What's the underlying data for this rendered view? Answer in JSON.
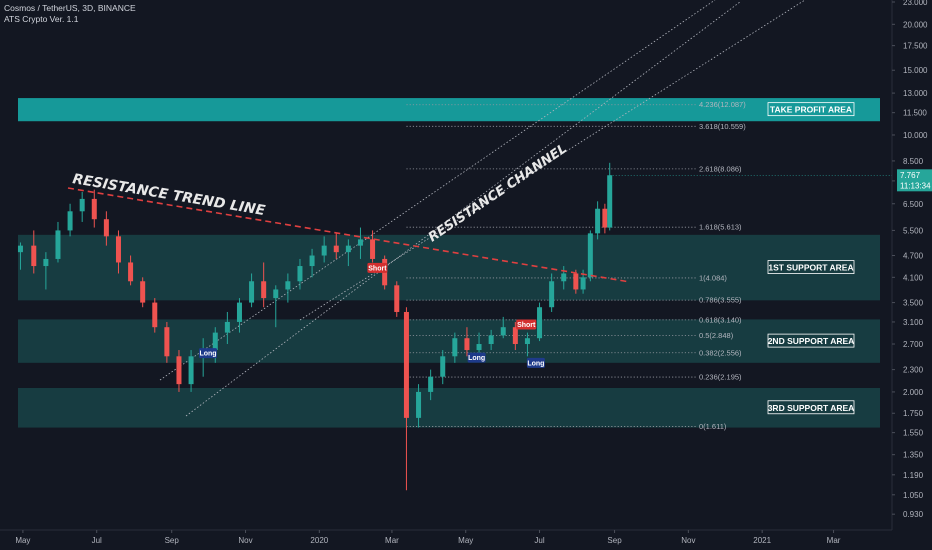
{
  "header": {
    "symbol": "Cosmos / TetherUS, 3D, BINANCE",
    "indicator": "ATS Crypto Ver. 1.1"
  },
  "colors": {
    "background": "#131722",
    "up": "#26a69a",
    "down": "#ef5350",
    "zone_dark": "#1a4a4c",
    "zone_bright": "#16a0a0",
    "trend": "#e04040",
    "price_tag": "#26a69a"
  },
  "price_tag": {
    "value": "7.767",
    "countdown": "11:13:34"
  },
  "chart_data": {
    "type": "candlestick",
    "title": "Cosmos / TetherUS, 3D, BINANCE",
    "scale": "log",
    "ylim": [
      0.88,
      23.0
    ],
    "y_ticks": [
      "23.000",
      "20.000",
      "17.500",
      "15.000",
      "13.000",
      "11.500",
      "10.000",
      "8.500",
      "7.500",
      "6.500",
      "5.500",
      "4.700",
      "4.100",
      "3.500",
      "3.100",
      "2.700",
      "2.300",
      "2.000",
      "1.750",
      "1.550",
      "1.350",
      "1.190",
      "1.050",
      "0.930"
    ],
    "x_ticks": [
      "May",
      "Jul",
      "Sep",
      "Nov",
      "2020",
      "Mar",
      "May",
      "Jul",
      "Sep",
      "Nov",
      "2021",
      "Mar"
    ],
    "x_range": [
      "2019-04-22",
      "2021-04-15"
    ],
    "series": [
      {
        "date": "2019-04-29",
        "open": 4.8,
        "high": 5.1,
        "low": 4.3,
        "close": 5.0
      },
      {
        "date": "2019-05-10",
        "open": 5.0,
        "high": 5.5,
        "low": 4.2,
        "close": 4.4
      },
      {
        "date": "2019-05-20",
        "open": 4.4,
        "high": 4.8,
        "low": 3.8,
        "close": 4.6
      },
      {
        "date": "2019-05-30",
        "open": 4.6,
        "high": 5.8,
        "low": 4.5,
        "close": 5.5
      },
      {
        "date": "2019-06-09",
        "open": 5.5,
        "high": 6.5,
        "low": 5.3,
        "close": 6.2
      },
      {
        "date": "2019-06-19",
        "open": 6.2,
        "high": 7.0,
        "low": 5.8,
        "close": 6.7
      },
      {
        "date": "2019-06-29",
        "open": 6.7,
        "high": 7.1,
        "low": 5.6,
        "close": 5.9
      },
      {
        "date": "2019-07-09",
        "open": 5.9,
        "high": 6.2,
        "low": 5.0,
        "close": 5.3
      },
      {
        "date": "2019-07-19",
        "open": 5.3,
        "high": 5.5,
        "low": 4.2,
        "close": 4.5
      },
      {
        "date": "2019-07-29",
        "open": 4.5,
        "high": 4.7,
        "low": 3.9,
        "close": 4.0
      },
      {
        "date": "2019-08-08",
        "open": 4.0,
        "high": 4.1,
        "low": 3.4,
        "close": 3.5
      },
      {
        "date": "2019-08-18",
        "open": 3.5,
        "high": 3.6,
        "low": 2.9,
        "close": 3.0
      },
      {
        "date": "2019-08-28",
        "open": 3.0,
        "high": 3.1,
        "low": 2.4,
        "close": 2.5
      },
      {
        "date": "2019-09-07",
        "open": 2.5,
        "high": 2.6,
        "low": 2.0,
        "close": 2.1
      },
      {
        "date": "2019-09-17",
        "open": 2.1,
        "high": 2.6,
        "low": 2.0,
        "close": 2.5
      },
      {
        "date": "2019-09-27",
        "open": 2.5,
        "high": 2.8,
        "low": 2.2,
        "close": 2.6
      },
      {
        "date": "2019-10-07",
        "open": 2.6,
        "high": 3.0,
        "low": 2.4,
        "close": 2.9
      },
      {
        "date": "2019-10-17",
        "open": 2.9,
        "high": 3.3,
        "low": 2.7,
        "close": 3.1
      },
      {
        "date": "2019-10-27",
        "open": 3.1,
        "high": 3.6,
        "low": 2.9,
        "close": 3.5
      },
      {
        "date": "2019-11-06",
        "open": 3.5,
        "high": 4.2,
        "low": 3.4,
        "close": 4.0
      },
      {
        "date": "2019-11-16",
        "open": 4.0,
        "high": 4.5,
        "low": 3.4,
        "close": 3.6
      },
      {
        "date": "2019-11-26",
        "open": 3.6,
        "high": 3.9,
        "low": 3.0,
        "close": 3.8
      },
      {
        "date": "2019-12-06",
        "open": 3.8,
        "high": 4.2,
        "low": 3.5,
        "close": 4.0
      },
      {
        "date": "2019-12-16",
        "open": 4.0,
        "high": 4.6,
        "low": 3.8,
        "close": 4.4
      },
      {
        "date": "2019-12-26",
        "open": 4.4,
        "high": 4.9,
        "low": 4.1,
        "close": 4.7
      },
      {
        "date": "2020-01-05",
        "open": 4.7,
        "high": 5.3,
        "low": 4.5,
        "close": 5.0
      },
      {
        "date": "2020-01-15",
        "open": 5.0,
        "high": 5.4,
        "low": 4.6,
        "close": 4.8
      },
      {
        "date": "2020-01-25",
        "open": 4.8,
        "high": 5.2,
        "low": 4.4,
        "close": 5.0
      },
      {
        "date": "2020-02-04",
        "open": 5.0,
        "high": 5.6,
        "low": 4.6,
        "close": 5.2
      },
      {
        "date": "2020-02-14",
        "open": 5.2,
        "high": 5.5,
        "low": 4.5,
        "close": 4.6
      },
      {
        "date": "2020-02-24",
        "open": 4.6,
        "high": 4.7,
        "low": 3.8,
        "close": 3.9
      },
      {
        "date": "2020-03-05",
        "open": 3.9,
        "high": 4.0,
        "low": 3.2,
        "close": 3.3
      },
      {
        "date": "2020-03-13",
        "open": 3.3,
        "high": 3.4,
        "low": 1.08,
        "close": 1.7
      },
      {
        "date": "2020-03-23",
        "open": 1.7,
        "high": 2.1,
        "low": 1.6,
        "close": 2.0
      },
      {
        "date": "2020-04-02",
        "open": 2.0,
        "high": 2.3,
        "low": 1.9,
        "close": 2.2
      },
      {
        "date": "2020-04-12",
        "open": 2.2,
        "high": 2.6,
        "low": 2.1,
        "close": 2.5
      },
      {
        "date": "2020-04-22",
        "open": 2.5,
        "high": 2.9,
        "low": 2.4,
        "close": 2.8
      },
      {
        "date": "2020-05-02",
        "open": 2.8,
        "high": 3.0,
        "low": 2.5,
        "close": 2.6
      },
      {
        "date": "2020-05-12",
        "open": 2.6,
        "high": 2.9,
        "low": 2.5,
        "close": 2.7
      },
      {
        "date": "2020-05-22",
        "open": 2.7,
        "high": 2.95,
        "low": 2.6,
        "close": 2.85
      },
      {
        "date": "2020-06-01",
        "open": 2.85,
        "high": 3.2,
        "low": 2.8,
        "close": 3.0
      },
      {
        "date": "2020-06-11",
        "open": 3.0,
        "high": 3.1,
        "low": 2.6,
        "close": 2.7
      },
      {
        "date": "2020-06-21",
        "open": 2.7,
        "high": 2.9,
        "low": 2.5,
        "close": 2.8
      },
      {
        "date": "2020-07-01",
        "open": 2.8,
        "high": 3.5,
        "low": 2.75,
        "close": 3.4
      },
      {
        "date": "2020-07-11",
        "open": 3.4,
        "high": 4.2,
        "low": 3.3,
        "close": 4.0
      },
      {
        "date": "2020-07-21",
        "open": 4.0,
        "high": 4.4,
        "low": 3.8,
        "close": 4.2
      },
      {
        "date": "2020-07-31",
        "open": 4.2,
        "high": 4.3,
        "low": 3.7,
        "close": 3.8
      },
      {
        "date": "2020-08-06",
        "open": 3.8,
        "high": 4.3,
        "low": 3.7,
        "close": 4.1
      },
      {
        "date": "2020-08-12",
        "open": 4.1,
        "high": 5.5,
        "low": 4.0,
        "close": 5.4
      },
      {
        "date": "2020-08-18",
        "open": 5.4,
        "high": 6.6,
        "low": 5.2,
        "close": 6.3
      },
      {
        "date": "2020-08-24",
        "open": 6.3,
        "high": 6.5,
        "low": 5.4,
        "close": 5.6
      },
      {
        "date": "2020-08-28",
        "open": 5.6,
        "high": 8.4,
        "low": 5.5,
        "close": 7.77
      }
    ],
    "zones": [
      {
        "label": "TAKE PROFIT AREA",
        "low": 10.9,
        "high": 12.6
      },
      {
        "label": "1ST SUPPORT AREA",
        "low": 3.55,
        "high": 5.35
      },
      {
        "label": "2ND SUPPORT AREA",
        "low": 2.4,
        "high": 3.15
      },
      {
        "label": "3RD SUPPORT AREA",
        "low": 1.6,
        "high": 2.05
      }
    ],
    "fib_levels": [
      {
        "label": "4.236(12.087)",
        "value": 12.087
      },
      {
        "label": "3.618(10.559)",
        "value": 10.559
      },
      {
        "label": "2.618(8.086)",
        "value": 8.086
      },
      {
        "label": "1.618(5.613)",
        "value": 5.613
      },
      {
        "label": "1(4.084)",
        "value": 4.084
      },
      {
        "label": "0.786(3.555)",
        "value": 3.555
      },
      {
        "label": "0.618(3.140)",
        "value": 3.14
      },
      {
        "label": "0.5(2.848)",
        "value": 2.848
      },
      {
        "label": "0.382(2.556)",
        "value": 2.556
      },
      {
        "label": "0.236(2.195)",
        "value": 2.195
      },
      {
        "label": "0(1.611)",
        "value": 1.611
      }
    ],
    "signals": [
      {
        "type": "Short",
        "date": "2020-02-18",
        "price": 4.35
      },
      {
        "type": "Long",
        "date": "2019-10-01",
        "price": 2.55
      },
      {
        "type": "Long",
        "date": "2020-05-10",
        "price": 2.48
      },
      {
        "type": "Short",
        "date": "2020-06-20",
        "price": 3.05
      },
      {
        "type": "Long",
        "date": "2020-06-28",
        "price": 2.4
      }
    ],
    "annotations": [
      {
        "text": "RESISTANCE TREND LINE"
      },
      {
        "text": "RESISTANCE CHANNEL"
      }
    ]
  }
}
